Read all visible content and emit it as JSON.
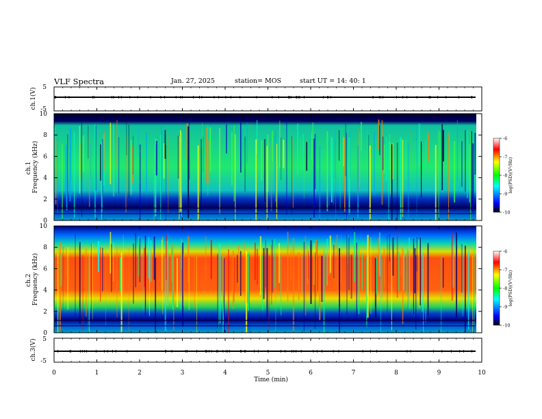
{
  "header": {
    "title": "VLF Spectra",
    "date": "Jan. 27, 2025",
    "station": "station= MOS",
    "start": "start  UT =   14: 40: 1"
  },
  "chart_data": [
    {
      "type": "line",
      "panel": "ch1-waveform",
      "ylabel": "ch.1(V)",
      "yticks": [
        5,
        -5
      ],
      "ylim": [
        -5,
        5
      ],
      "value": -1.5
    },
    {
      "type": "heatmap",
      "panel": "ch1-spectrogram",
      "ylabel": "ch.1\nFrequency (kHz)",
      "ylabel_lines": [
        "ch.1",
        "Frequency (kHz)"
      ],
      "yticks": [
        0,
        2,
        4,
        6,
        8,
        10
      ],
      "ylim": [
        0,
        10
      ],
      "colorbar": {
        "label": "log(PSD)(V²/Hz)",
        "ticks": [
          "-6",
          "-7",
          "-8",
          "-9",
          "-10"
        ],
        "range": [
          -10,
          -6
        ]
      },
      "peak_band_khz": [
        1.0,
        9.5
      ],
      "dominant_level": -8
    },
    {
      "type": "heatmap",
      "panel": "ch2-spectrogram",
      "ylabel": "ch.2\nFrequency (kHz)",
      "ylabel_lines": [
        "ch.2",
        "Frequency (kHz)"
      ],
      "yticks": [
        0,
        2,
        4,
        6,
        8,
        10
      ],
      "ylim": [
        0,
        10
      ],
      "colorbar": {
        "label": "log(PSD)(V²/Hz)",
        "ticks": [
          "-6",
          "-7",
          "-8",
          "-9",
          "-10"
        ],
        "range": [
          -10,
          -6
        ]
      },
      "peak_band_khz": [
        4.5,
        8.0
      ],
      "dominant_level": -7
    },
    {
      "type": "line",
      "panel": "ch3-waveform",
      "ylabel": "ch.3(V)",
      "yticks": [
        5,
        -5
      ],
      "ylim": [
        -5,
        5
      ],
      "value": -1.5
    }
  ],
  "xaxis": {
    "label": "Time (min)",
    "ticks": [
      "0",
      "1",
      "2",
      "3",
      "4",
      "5",
      "6",
      "7",
      "8",
      "9",
      "10"
    ],
    "range": [
      0,
      10
    ],
    "data_end": 9.85
  },
  "colors": {
    "ch1_background": "#00e87a",
    "ch2_background": "#e8e800",
    "colorbar_stops": [
      "#000000",
      "#0000ff",
      "#00ffff",
      "#00ff00",
      "#ffff00",
      "#ff0000",
      "#ffffff"
    ]
  }
}
